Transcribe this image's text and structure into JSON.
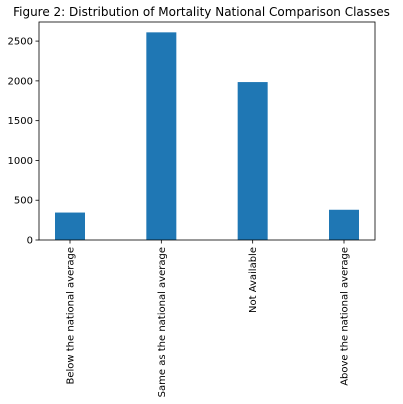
{
  "chart_data": {
    "type": "bar",
    "title": "Figure 2: Distribution of Mortality National Comparison Classes",
    "xlabel": "",
    "ylabel": "",
    "categories": [
      "Below the national average",
      "Same as the national average",
      "Not Available",
      "Above the national average"
    ],
    "values": [
      345,
      2610,
      1985,
      380
    ],
    "ylim": [
      0,
      2740
    ],
    "yticks": [
      0,
      500,
      1000,
      1500,
      2000,
      2500
    ],
    "bar_color": "#1f77b4",
    "grid": false,
    "legend": "none"
  }
}
